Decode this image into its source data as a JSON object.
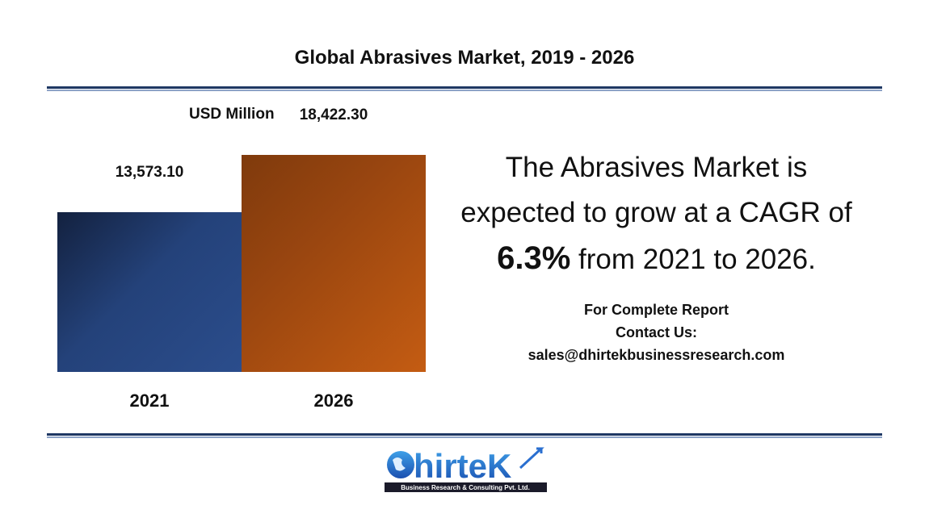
{
  "chart_data": {
    "type": "bar",
    "title": "Global Abrasives Market, 2019 - 2026",
    "ylabel": "USD Million",
    "categories": [
      "2021",
      "2026"
    ],
    "values": [
      13573.1,
      18422.3
    ],
    "data_labels": [
      "13,573.10",
      "18,422.30"
    ],
    "ylim": [
      0,
      20000
    ],
    "grid": false,
    "colors": [
      "#24427a",
      "#b5540f"
    ]
  },
  "headline": {
    "line1": "The Abrasives Market is",
    "line2": "expected to grow at a CAGR of",
    "cagr": "6.3%",
    "line3": " from 2021 to 2026."
  },
  "contact": {
    "line1": "For Complete Report",
    "line2": "Contact Us:",
    "email": "sales@dhirtekbusinessresearch.com"
  },
  "logo": {
    "name": "Dhirtek",
    "tagline": "Business Research & Consulting Pvt. Ltd."
  }
}
